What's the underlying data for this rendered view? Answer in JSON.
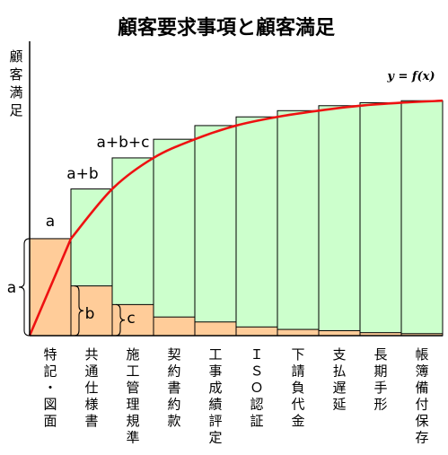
{
  "chart_data": {
    "type": "bar",
    "title": "顧客要求事項と顧客満足",
    "ylabel": "顧客満足",
    "curve_label": "y = f(x)",
    "categories": [
      "特記・図面",
      "共通仕様書",
      "施工管理規準",
      "契約書約款",
      "工事成績評定",
      "ＩＳＯ認証",
      "下請負代金",
      "支払遅延",
      "長期手形",
      "帳簿備付保存"
    ],
    "ylim": [
      0,
      100
    ],
    "series": [
      {
        "values": [
          39,
          20,
          12.5,
          7.5,
          5.5,
          3.5,
          2.5,
          2,
          1.2,
          0.8
        ]
      },
      {
        "values": [
          39,
          59,
          71.5,
          79,
          84.5,
          88,
          90.5,
          92.5,
          93.7,
          94.5
        ]
      }
    ],
    "annotations": [
      {
        "text": "a",
        "category": "特記・図面"
      },
      {
        "text": "a+b",
        "category": "共通仕様書"
      },
      {
        "text": "a+b+c",
        "category": "施工管理規準"
      },
      {
        "text": "a",
        "category": "特記・図面"
      },
      {
        "text": "b",
        "category": "共通仕様書"
      },
      {
        "text": "c",
        "category": "施工管理規準"
      }
    ],
    "colors": {
      "increment": "#ffcc99",
      "cumulative": "#ccffcc",
      "curve": "#ee1111",
      "outline": "#000000"
    }
  }
}
